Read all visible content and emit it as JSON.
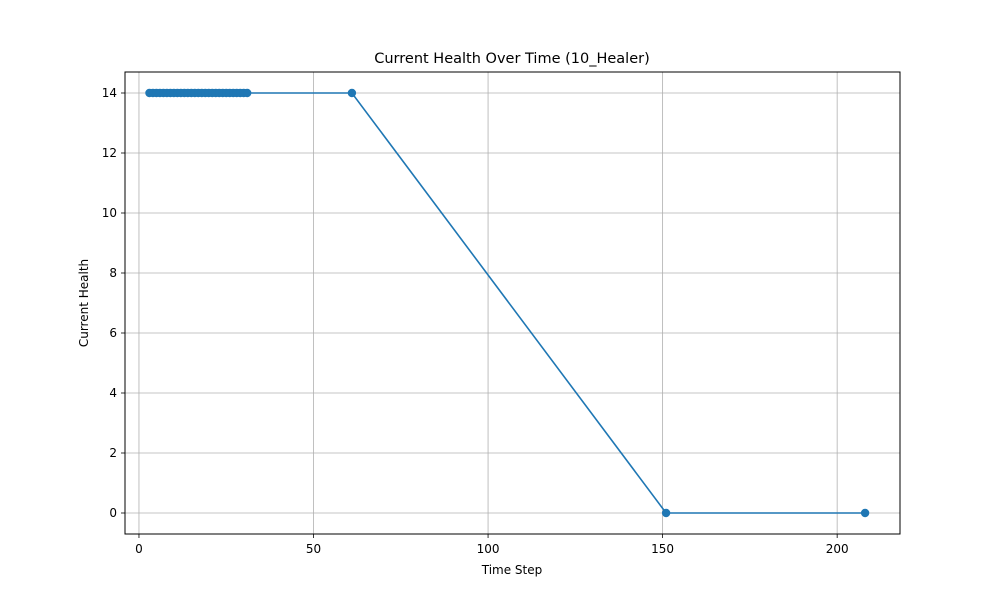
{
  "chart_data": {
    "type": "line",
    "title": "Current Health Over Time (10_Healer)",
    "xlabel": "Time Step",
    "ylabel": "Current Health",
    "xlim": [
      -4,
      218
    ],
    "ylim": [
      -0.7,
      14.7
    ],
    "xticks": [
      0,
      50,
      100,
      150,
      200
    ],
    "yticks": [
      0,
      2,
      4,
      6,
      8,
      10,
      12,
      14
    ],
    "grid": true,
    "legend": "none",
    "color": "#1f77b4",
    "series": [
      {
        "x": [
          3,
          4,
          5,
          6,
          7,
          8,
          9,
          10,
          11,
          12,
          13,
          14,
          15,
          16,
          17,
          18,
          19,
          20,
          21,
          22,
          23,
          24,
          25,
          26,
          27,
          28,
          29,
          30,
          31,
          61,
          151,
          208
        ],
        "values": [
          14,
          14,
          14,
          14,
          14,
          14,
          14,
          14,
          14,
          14,
          14,
          14,
          14,
          14,
          14,
          14,
          14,
          14,
          14,
          14,
          14,
          14,
          14,
          14,
          14,
          14,
          14,
          14,
          14,
          14,
          0,
          0
        ]
      }
    ]
  }
}
